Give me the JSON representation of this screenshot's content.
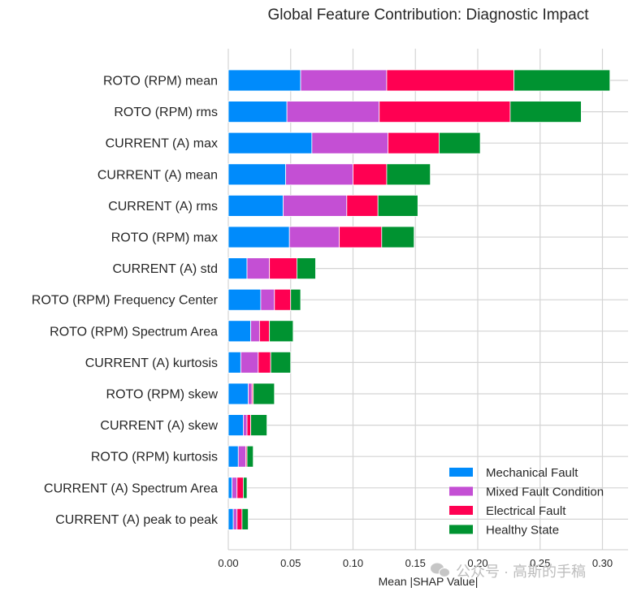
{
  "chart_data": {
    "type": "bar",
    "orientation": "horizontal",
    "stacked": true,
    "title": "Global Feature Contribution: Diagnostic Impact",
    "xlabel": "Mean |SHAP Value|",
    "ylabel": "",
    "xlim": [
      0,
      0.32
    ],
    "xticks": [
      "0.00",
      "0.05",
      "0.10",
      "0.15",
      "0.20",
      "0.25",
      "0.30"
    ],
    "grid": true,
    "legend_position": "lower-right",
    "categories": [
      "ROTO (RPM) mean",
      "ROTO (RPM) rms",
      "CURRENT (A) max",
      "CURRENT (A) mean",
      "CURRENT (A) rms",
      "ROTO (RPM) max",
      "CURRENT (A) std",
      "ROTO (RPM) Frequency Center",
      "ROTO (RPM) Spectrum Area",
      "CURRENT (A) kurtosis",
      "ROTO (RPM) skew",
      "CURRENT (A) skew",
      "ROTO (RPM) kurtosis",
      "CURRENT (A) Spectrum Area",
      "CURRENT (A) peak to peak"
    ],
    "series": [
      {
        "name": "Mechanical Fault",
        "color": "#008bfb",
        "values": [
          0.058,
          0.047,
          0.067,
          0.046,
          0.044,
          0.049,
          0.015,
          0.026,
          0.018,
          0.01,
          0.016,
          0.012,
          0.008,
          0.003,
          0.004
        ]
      },
      {
        "name": "Mixed Fault Condition",
        "color": "#c44fd4",
        "values": [
          0.069,
          0.074,
          0.061,
          0.054,
          0.051,
          0.04,
          0.018,
          0.011,
          0.007,
          0.014,
          0.003,
          0.003,
          0.006,
          0.004,
          0.003
        ]
      },
      {
        "name": "Electrical Fault",
        "color": "#ff0052",
        "values": [
          0.102,
          0.105,
          0.041,
          0.027,
          0.025,
          0.034,
          0.022,
          0.013,
          0.008,
          0.01,
          0.001,
          0.003,
          0.001,
          0.005,
          0.004
        ]
      },
      {
        "name": "Healthy State",
        "color": "#009331",
        "values": [
          0.077,
          0.057,
          0.033,
          0.035,
          0.032,
          0.026,
          0.015,
          0.008,
          0.019,
          0.016,
          0.017,
          0.013,
          0.005,
          0.003,
          0.005
        ]
      }
    ]
  },
  "watermark": {
    "text": "公众号 · 高斯的手稿",
    "icon": "wechat-icon"
  }
}
